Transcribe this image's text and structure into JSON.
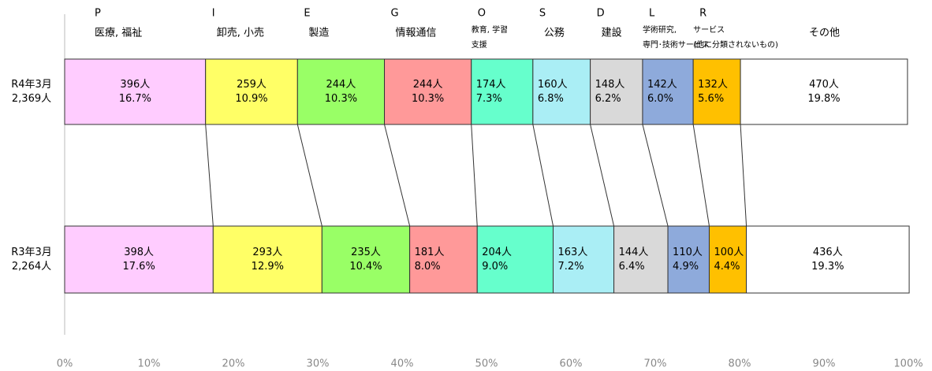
{
  "chart_data": {
    "type": "stacked-bar-100",
    "categories": [
      "R4年3月",
      "R3年3月"
    ],
    "totals": [
      "2,369人",
      "2,264人"
    ],
    "xlim": [
      0,
      100
    ],
    "xticks": [
      {
        "value": 0,
        "label": "0%"
      },
      {
        "value": 10,
        "label": "10%"
      },
      {
        "value": 20,
        "label": "20%"
      },
      {
        "value": 30,
        "label": "30%"
      },
      {
        "value": 40,
        "label": "40%"
      },
      {
        "value": 50,
        "label": "50%"
      },
      {
        "value": 60,
        "label": "60%"
      },
      {
        "value": 70,
        "label": "70%"
      },
      {
        "value": 80,
        "label": "80%"
      },
      {
        "value": 90,
        "label": "90%"
      },
      {
        "value": 100,
        "label": "100%"
      }
    ],
    "series": [
      {
        "letter": "P",
        "label_lines": [
          "医療, 福祉"
        ],
        "color": "#ffccff",
        "values": [
          16.7,
          17.6
        ],
        "value_labels": [
          "16.7%",
          "17.6%"
        ],
        "count_labels": [
          "396人",
          "398人"
        ]
      },
      {
        "letter": "I",
        "label_lines": [
          "卸売, 小売"
        ],
        "color": "#ffff66",
        "values": [
          10.9,
          12.9
        ],
        "value_labels": [
          "10.9%",
          "12.9%"
        ],
        "count_labels": [
          "259人",
          "293人"
        ]
      },
      {
        "letter": "E",
        "label_lines": [
          "製造"
        ],
        "color": "#99ff66",
        "values": [
          10.3,
          10.4
        ],
        "value_labels": [
          "10.3%",
          "10.4%"
        ],
        "count_labels": [
          "244人",
          "235人"
        ]
      },
      {
        "letter": "G",
        "label_lines": [
          "情報通信"
        ],
        "color": "#ff9999",
        "values": [
          10.3,
          8.0
        ],
        "value_labels": [
          "10.3%",
          "8.0%"
        ],
        "count_labels": [
          "244人",
          "181人"
        ]
      },
      {
        "letter": "O",
        "label_lines": [
          "教育, 学習",
          "支援"
        ],
        "color": "#66ffcc",
        "values": [
          7.3,
          9.0
        ],
        "value_labels": [
          "7.3%",
          "9.0%"
        ],
        "count_labels": [
          "174人",
          "204人"
        ]
      },
      {
        "letter": "S",
        "label_lines": [
          "公務"
        ],
        "color": "#aaeef5",
        "values": [
          6.8,
          7.2
        ],
        "value_labels": [
          "6.8%",
          "7.2%"
        ],
        "count_labels": [
          "160人",
          "163人"
        ]
      },
      {
        "letter": "D",
        "label_lines": [
          "建設"
        ],
        "color": "#d9d9d9",
        "values": [
          6.2,
          6.4
        ],
        "value_labels": [
          "6.2%",
          "6.4%"
        ],
        "count_labels": [
          "148人",
          "144人"
        ]
      },
      {
        "letter": "L",
        "label_lines": [
          "学術研究,",
          "専門･技術サービス"
        ],
        "color": "#8eaadb",
        "values": [
          6.0,
          4.9
        ],
        "value_labels": [
          "6.0%",
          "4.9%"
        ],
        "count_labels": [
          "142人",
          "110人"
        ]
      },
      {
        "letter": "R",
        "label_lines": [
          "サービス",
          "(他に分類されないもの)"
        ],
        "color": "#ffc000",
        "values": [
          5.6,
          4.4
        ],
        "value_labels": [
          "5.6%",
          "4.4%"
        ],
        "count_labels": [
          "132人",
          "100人"
        ]
      },
      {
        "label_lines": [
          "その他"
        ],
        "color": "#ffffff",
        "values": [
          19.8,
          19.3
        ],
        "value_labels": [
          "19.8%",
          "19.3%"
        ],
        "count_labels": [
          "470人",
          "436人"
        ]
      }
    ]
  }
}
